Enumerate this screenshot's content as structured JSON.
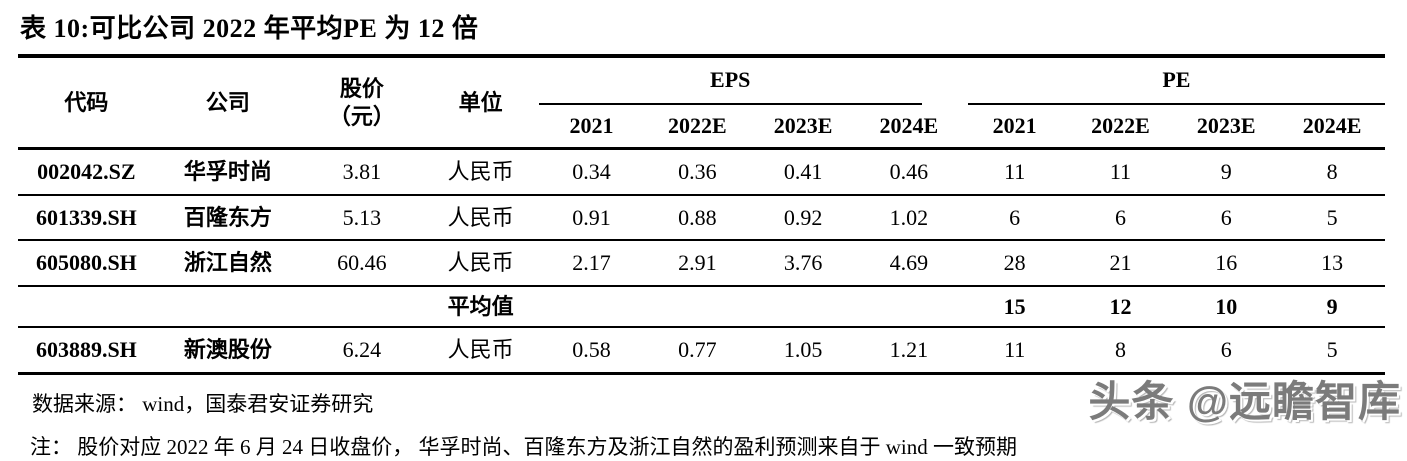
{
  "title": "表 10:可比公司 2022 年平均PE 为 12 倍",
  "table": {
    "headers": {
      "code": "代码",
      "company": "公司",
      "price_line1": "股价",
      "price_line2": "（元）",
      "unit": "单位",
      "eps_group": "EPS",
      "pe_group": "PE",
      "years": [
        "2021",
        "2022E",
        "2023E",
        "2024E"
      ]
    },
    "rows": [
      {
        "code": "002042.SZ",
        "company": "华孚时尚",
        "price": "3.81",
        "unit": "人民币",
        "eps": [
          "0.34",
          "0.36",
          "0.41",
          "0.46"
        ],
        "pe": [
          "11",
          "11",
          "9",
          "8"
        ]
      },
      {
        "code": "601339.SH",
        "company": "百隆东方",
        "price": "5.13",
        "unit": "人民币",
        "eps": [
          "0.91",
          "0.88",
          "0.92",
          "1.02"
        ],
        "pe": [
          "6",
          "6",
          "6",
          "5"
        ]
      },
      {
        "code": "605080.SH",
        "company": "浙江自然",
        "price": "60.46",
        "unit": "人民币",
        "eps": [
          "2.17",
          "2.91",
          "3.76",
          "4.69"
        ],
        "pe": [
          "28",
          "21",
          "16",
          "13"
        ]
      },
      {
        "code": "",
        "company": "",
        "price": "",
        "unit": "平均值",
        "eps": [
          "",
          "",
          "",
          ""
        ],
        "pe": [
          "15",
          "12",
          "10",
          "9"
        ]
      },
      {
        "code": "603889.SH",
        "company": "新澳股份",
        "price": "6.24",
        "unit": "人民币",
        "eps": [
          "0.58",
          "0.77",
          "1.05",
          "1.21"
        ],
        "pe": [
          "11",
          "8",
          "6",
          "5"
        ]
      }
    ]
  },
  "footer": {
    "source": "数据来源： wind，国泰君安证券研究",
    "note": "注： 股价对应 2022 年 6 月 24 日收盘价， 华孚时尚、百隆东方及浙江自然的盈利预测来自于 wind 一致预期"
  },
  "watermark": "头条 @远瞻智库",
  "colors": {
    "text": "#000000",
    "background": "#ffffff",
    "border": "#000000",
    "watermark_gray": "#7b7b7b"
  }
}
